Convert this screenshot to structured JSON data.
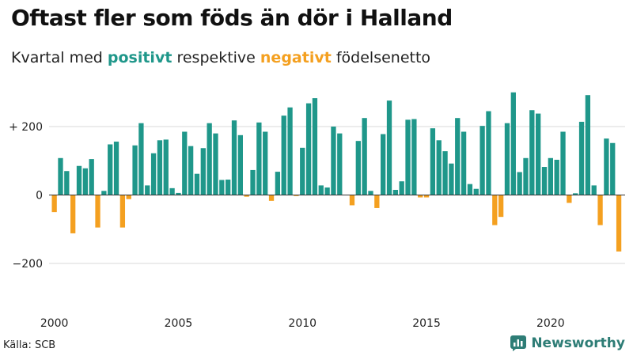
{
  "header": {
    "title": "Oftast fler som föds än dör i Halland",
    "subtitle_part1": "Kvartal med ",
    "subtitle_positive": "positivt",
    "subtitle_part2": " respektive ",
    "subtitle_negative": "negativt",
    "subtitle_part3": " födelsenetto"
  },
  "footer": {
    "source": "Källa: SCB",
    "brand": "Newsworthy",
    "brand_icon": "bar-chart-logo-icon"
  },
  "colors": {
    "positive": "#1f978a",
    "negative": "#f4a020",
    "grid": "#d8d8d8",
    "zero_line": "#333333",
    "brand": "#2e7d76"
  },
  "chart_data": {
    "type": "bar",
    "title": "Oftast fler som föds än dör i Halland",
    "subtitle": "Kvartal med positivt respektive negativt födelsenetto",
    "xlabel": "",
    "ylabel": "",
    "ylim": [
      -300,
      320
    ],
    "grid": true,
    "y_ticks": [
      {
        "value": 200,
        "label": "+ 200"
      },
      {
        "value": 0,
        "label": "0"
      },
      {
        "value": -200,
        "label": "−200"
      }
    ],
    "x_ticks": [
      {
        "value": 2000,
        "label": "2000"
      },
      {
        "value": 2005,
        "label": "2005"
      },
      {
        "value": 2010,
        "label": "2010"
      },
      {
        "value": 2015,
        "label": "2015"
      },
      {
        "value": 2020,
        "label": "2020"
      }
    ],
    "start_year": 2000,
    "periods": [
      "2000Q1",
      "2000Q2",
      "2000Q3",
      "2000Q4",
      "2001Q1",
      "2001Q2",
      "2001Q3",
      "2001Q4",
      "2002Q1",
      "2002Q2",
      "2002Q3",
      "2002Q4",
      "2003Q1",
      "2003Q2",
      "2003Q3",
      "2003Q4",
      "2004Q1",
      "2004Q2",
      "2004Q3",
      "2004Q4",
      "2005Q1",
      "2005Q2",
      "2005Q3",
      "2005Q4",
      "2006Q1",
      "2006Q2",
      "2006Q3",
      "2006Q4",
      "2007Q1",
      "2007Q2",
      "2007Q3",
      "2007Q4",
      "2008Q1",
      "2008Q2",
      "2008Q3",
      "2008Q4",
      "2009Q1",
      "2009Q2",
      "2009Q3",
      "2009Q4",
      "2010Q1",
      "2010Q2",
      "2010Q3",
      "2010Q4",
      "2011Q1",
      "2011Q2",
      "2011Q3",
      "2011Q4",
      "2012Q1",
      "2012Q2",
      "2012Q3",
      "2012Q4",
      "2013Q1",
      "2013Q2",
      "2013Q3",
      "2013Q4",
      "2014Q1",
      "2014Q2",
      "2014Q3",
      "2014Q4",
      "2015Q1",
      "2015Q2",
      "2015Q3",
      "2015Q4",
      "2016Q1",
      "2016Q2",
      "2016Q3",
      "2016Q4",
      "2017Q1",
      "2017Q2",
      "2017Q3",
      "2017Q4",
      "2018Q1",
      "2018Q2",
      "2018Q3",
      "2018Q4",
      "2019Q1",
      "2019Q2",
      "2019Q3",
      "2019Q4",
      "2020Q1",
      "2020Q2",
      "2020Q3",
      "2020Q4",
      "2021Q1",
      "2021Q2",
      "2021Q3",
      "2021Q4",
      "2022Q1",
      "2022Q2",
      "2022Q3",
      "2022Q4"
    ],
    "values": [
      -50,
      108,
      70,
      -112,
      85,
      78,
      105,
      -95,
      12,
      148,
      156,
      -95,
      -12,
      145,
      210,
      28,
      122,
      160,
      162,
      20,
      6,
      185,
      143,
      62,
      137,
      210,
      180,
      44,
      45,
      218,
      175,
      -5,
      73,
      212,
      185,
      -17,
      68,
      232,
      256,
      -3,
      138,
      268,
      283,
      28,
      22,
      200,
      180,
      0,
      -30,
      158,
      225,
      12,
      -38,
      178,
      276,
      15,
      40,
      220,
      222,
      -7,
      -7,
      195,
      160,
      128,
      92,
      225,
      185,
      32,
      18,
      202,
      245,
      -88,
      -64,
      210,
      300,
      67,
      108,
      248,
      238,
      82,
      108,
      103,
      185,
      -23,
      5,
      214,
      292,
      28,
      -88,
      165,
      152,
      -165
    ]
  }
}
